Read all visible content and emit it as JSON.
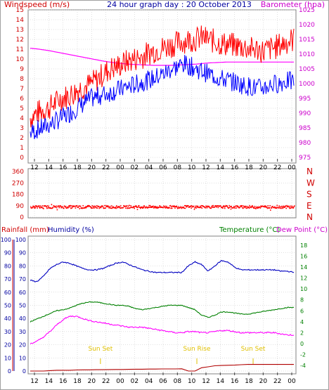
{
  "header": {
    "title": "24 hour graph day : 20 October 2013",
    "left_label": "Windspeed (m/s)",
    "right_label": "Barometer (hpa)"
  },
  "colors": {
    "border": "#808080",
    "grid": "#c0c0c0",
    "wind": "#ff0000",
    "gust": "#ff0000",
    "avgwind": "#0000ff",
    "baro": "#ff00ff",
    "axis_red": "#d00000",
    "axis_blue": "#0000a0",
    "axis_magenta": "#cc00cc",
    "axis_green": "#008000",
    "sun": "#e0c000",
    "rain": "#b00000",
    "humidity": "#0000c0",
    "temperature": "#008000",
    "dewpoint": "#ff00ff"
  },
  "hours": [
    "12",
    "14",
    "16",
    "18",
    "20",
    "22",
    "00",
    "02",
    "04",
    "06",
    "08",
    "10",
    "12",
    "14",
    "16",
    "18",
    "20",
    "22",
    "00"
  ],
  "chart_data": [
    {
      "type": "line",
      "panel": "wind",
      "left_axis": {
        "label": "Windspeed (m/s)",
        "range": [
          0,
          15
        ],
        "ticks": [
          "0",
          "1",
          "2",
          "3",
          "4",
          "5",
          "6",
          "7",
          "8",
          "9",
          "10",
          "11",
          "12",
          "13",
          "14",
          "15"
        ]
      },
      "right_axis": {
        "label": "Barometer (hpa)",
        "range": [
          975,
          1025
        ],
        "ticks": [
          "975",
          "980",
          "985",
          "990",
          "995",
          "1000",
          "1005",
          "1010",
          "1015",
          "1020",
          "1025"
        ]
      },
      "series": [
        {
          "name": "",
          "values": [
            4,
            4.5,
            4.8,
            5,
            5.5,
            6,
            6.2,
            6.5,
            7,
            7.2,
            7.5,
            8,
            8.5,
            9,
            9.2,
            9.5,
            9.8,
            10,
            10.2,
            10.5,
            10.8,
            11,
            11.2,
            11.4,
            11.6,
            11.8,
            12,
            12,
            12.2,
            12,
            11.8,
            11.6,
            11.5,
            11.4,
            11.3,
            11.2,
            11,
            11,
            10.8,
            11,
            11.2,
            11.5,
            11.8,
            12
          ]
        },
        {
          "name": "",
          "values": [
            2.5,
            2.8,
            3,
            3.3,
            3.6,
            4,
            4.3,
            4.8,
            5.2,
            5.6,
            6,
            6.2,
            6.4,
            6.6,
            6.8,
            7,
            7.2,
            7.4,
            7.6,
            7.8,
            8,
            8.3,
            8.6,
            9,
            9.2,
            9.5,
            9.3,
            9,
            8.8,
            8.5,
            8.3,
            8,
            7.9,
            7.7,
            7.5,
            7.3,
            7.2,
            7,
            7.1,
            7.3,
            7.5,
            7.6,
            7.8,
            7.6
          ]
        },
        {
          "name": "",
          "values": [
            1012,
            1011.8,
            1011.5,
            1011.2,
            1010.8,
            1010.4,
            1010,
            1009.6,
            1009.2,
            1008.8,
            1008.4,
            1008,
            1007.6,
            1007.3,
            1007,
            1006.8,
            1006.6,
            1006.5,
            1006.4,
            1006.3,
            1006.2,
            1006.2,
            1006.2,
            1006.2,
            1006.3,
            1006.4,
            1006.5,
            1006.6,
            1006.8,
            1007,
            1007.1,
            1007.2,
            1007.3,
            1007.3,
            1007.3,
            1007.3,
            1007.3,
            1007.3,
            1007.3,
            1007.3,
            1007.3,
            1007.3,
            1007.3,
            1007.3
          ]
        }
      ]
    },
    {
      "type": "scatter",
      "panel": "wind_direction",
      "y_range": [
        0,
        360
      ],
      "ticks": [
        "0",
        "90",
        "180",
        "270",
        "360"
      ],
      "compass": [
        "N",
        "W",
        "S",
        "E",
        "N"
      ],
      "series": [
        {
          "name": "",
          "mean": 80
        }
      ]
    },
    {
      "type": "line",
      "panel": "climate",
      "labels": {
        "rain": "Rainfall (mm)",
        "humidity": "Humidity (%)",
        "temperature": "Temperature (°C)",
        "dewpoint": "Dew Point (°C)"
      },
      "rain_axis": {
        "range": [
          0,
          100
        ],
        "ticks": [
          "0",
          "10",
          "20",
          "30",
          "40",
          "50",
          "60",
          "70",
          "80",
          "90",
          "100"
        ]
      },
      "humidity_axis": {
        "range": [
          0,
          100
        ],
        "ticks": [
          "0",
          "10",
          "20",
          "30",
          "40",
          "50",
          "60",
          "70",
          "80",
          "90",
          "100"
        ]
      },
      "temp_axis": {
        "range": [
          -5,
          19
        ],
        "ticks": [
          "-4",
          "-2",
          "0",
          "2",
          "4",
          "6",
          "8",
          "10",
          "12",
          "14",
          "16",
          "18"
        ]
      },
      "sun_events": [
        {
          "label": "Sun Set",
          "pos": 0.27
        },
        {
          "label": "Sun Rise",
          "pos": 0.63
        },
        {
          "label": "Sun Set",
          "pos": 0.84
        }
      ],
      "series": [
        {
          "name": "",
          "values": [
            69,
            68,
            72,
            78,
            81,
            83,
            82,
            80,
            78,
            77,
            77,
            78,
            80,
            82,
            83,
            81,
            79,
            77,
            76,
            75,
            75,
            75,
            75,
            75,
            80,
            83,
            81,
            76,
            80,
            84,
            83,
            79,
            77,
            77,
            77,
            77,
            77,
            77,
            76,
            76,
            75
          ]
        },
        {
          "name": "",
          "values": [
            4,
            4.5,
            5,
            5.5,
            6,
            6.2,
            6.5,
            7,
            7.4,
            7.6,
            7.6,
            7.4,
            7.2,
            7,
            7,
            6.8,
            6.4,
            6.2,
            6.4,
            6.6,
            6.8,
            7,
            7,
            7,
            6.6,
            6.2,
            5.2,
            4.8,
            5.2,
            5.8,
            5.8,
            5.6,
            5.4,
            5.4,
            5.6,
            5.8,
            6,
            6.2,
            6.4,
            6.6,
            6.6
          ]
        },
        {
          "name": "",
          "values": [
            0,
            0.4,
            1.2,
            2.2,
            3.4,
            4.4,
            5,
            5,
            4.6,
            4.2,
            4,
            3.8,
            3.6,
            3.4,
            3.2,
            3,
            3,
            3,
            2.8,
            2.6,
            2.4,
            2.2,
            2,
            2,
            2.2,
            2.2,
            2,
            2,
            2.2,
            2.4,
            2.4,
            2.2,
            2,
            2,
            2,
            2,
            2,
            2,
            1.8,
            1.6,
            1.6
          ]
        },
        {
          "name": "",
          "values": [
            0,
            0,
            0,
            0.3,
            0.6,
            0.6,
            0.6,
            0.8,
            0.9,
            0.9,
            1,
            1,
            1.1,
            1.2,
            1.2,
            1.3,
            1.4,
            1.4,
            1.5,
            1.5,
            1.6,
            1.6,
            1.6,
            1.7,
            0,
            0,
            2.5,
            3.2,
            4,
            4.2,
            4.4,
            4.5,
            4.8,
            5,
            5,
            5,
            5,
            5,
            5,
            5,
            5
          ]
        }
      ]
    }
  ]
}
